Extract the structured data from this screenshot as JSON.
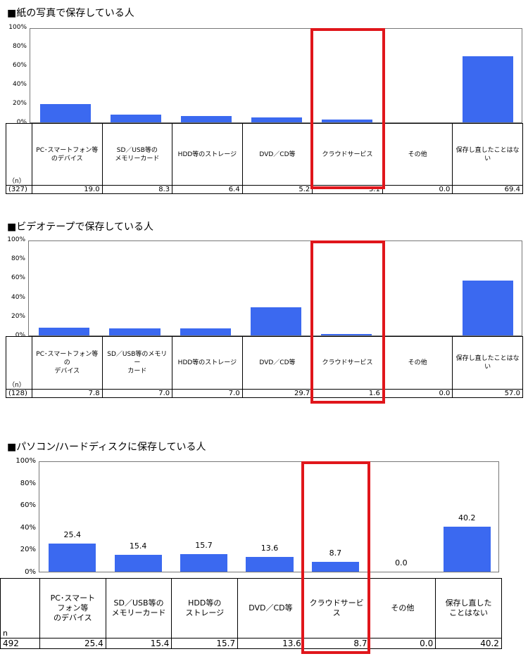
{
  "chart_data": [
    {
      "type": "bar",
      "title": "■紙の写真で保存している人",
      "categories": [
        "PC･スマートフォン等\nのデバイス",
        "SD／USB等の\nメモリーカード",
        "HDD等のストレージ",
        "DVD／CD等",
        "クラウドサービス",
        "その他",
        "保存し直したことはない"
      ],
      "values": [
        19.0,
        8.3,
        6.4,
        5.2,
        3.1,
        0.0,
        69.4
      ],
      "value_text": [
        "19.0",
        "8.3",
        "6.4",
        "5.2",
        "3.1",
        "0.0",
        "69.4"
      ],
      "n_label": "（n）",
      "n_value": "(327)",
      "yticks": [
        "0%",
        "20%",
        "40%",
        "60%",
        "80%",
        "100%"
      ],
      "ylim": [
        0,
        100
      ],
      "highlight_category": "クラウドサービス",
      "bar_color": "#3b69f0",
      "highlight_color": "#e0161b"
    },
    {
      "type": "bar",
      "title": "■ビデオテープで保存している人",
      "categories": [
        "PC･スマートフォン等の\nデバイス",
        "SD／USB等のメモリー\nカード",
        "HDD等のストレージ",
        "DVD／CD等",
        "クラウドサービス",
        "その他",
        "保存し直したことはない"
      ],
      "values": [
        7.8,
        7.0,
        7.0,
        29.7,
        1.6,
        0.0,
        57.0
      ],
      "value_text": [
        "7.8",
        "7.0",
        "7.0",
        "29.7",
        "1.6",
        "0.0",
        "57.0"
      ],
      "n_label": "（n）",
      "n_value": "(128)",
      "yticks": [
        "0%",
        "20%",
        "40%",
        "60%",
        "80%",
        "100%"
      ],
      "ylim": [
        0,
        100
      ],
      "highlight_category": "クラウドサービス",
      "bar_color": "#3b69f0",
      "highlight_color": "#e0161b"
    },
    {
      "type": "bar",
      "title": "■パソコン/ハードディスクに保存している人",
      "categories": [
        "PC･スマート\nフォン等\nのデバイス",
        "SD／USB等の\nメモリーカード",
        "HDD等の\nストレージ",
        "DVD／CD等",
        "クラウドサービス",
        "その他",
        "保存し直した\nことはない"
      ],
      "values": [
        25.4,
        15.4,
        15.7,
        13.6,
        8.7,
        0.0,
        40.2
      ],
      "value_text": [
        "25.4",
        "15.4",
        "15.7",
        "13.6",
        "8.7",
        "0.0",
        "40.2"
      ],
      "data_labels": [
        "25.4",
        "15.4",
        "15.7",
        "13.6",
        "8.7",
        "0.0",
        "40.2"
      ],
      "n_label": "n",
      "n_value": "492",
      "yticks": [
        "0%",
        "20%",
        "40%",
        "60%",
        "80%",
        "100%"
      ],
      "ylim": [
        0,
        100
      ],
      "highlight_category": "クラウドサービス",
      "bar_color": "#3b69f0",
      "highlight_color": "#e0161b"
    }
  ]
}
